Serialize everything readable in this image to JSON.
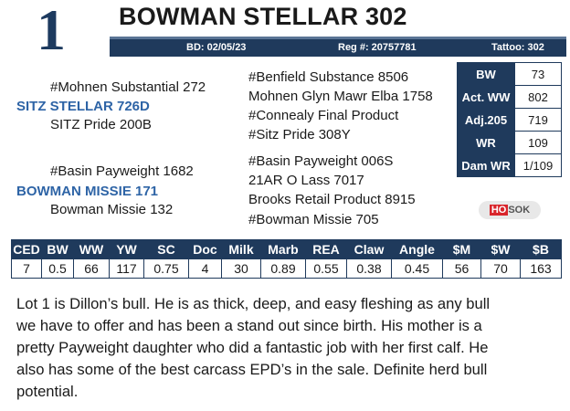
{
  "lot": {
    "number": "1",
    "name": "BOWMAN STELLAR 302",
    "bd": "BD: 02/05/23",
    "reg": "Reg #: 20757781",
    "tattoo": "Tattoo: 302"
  },
  "pedigree": {
    "sire_sire": "#Mohnen Substantial 272",
    "sire": "SITZ STELLAR 726D",
    "sire_dam": "SITZ Pride 200B",
    "dam_sire": "#Basin Payweight 1682",
    "dam": "BOWMAN MISSIE 171",
    "dam_dam": "Bowman Missie 132",
    "third": [
      "#Benfield Substance 8506",
      "Mohnen Glyn Mawr Elba 1758",
      "#Connealy Final Product",
      "#Sitz Pride 308Y",
      "#Basin Payweight 006S",
      "21AR O Lass 7017",
      "Brooks Retail Product 8915",
      "#Bowman Missie 705"
    ]
  },
  "stats": {
    "rows": [
      [
        "BW",
        "73"
      ],
      [
        "Act. WW",
        "802"
      ],
      [
        "Adj.205",
        "719"
      ],
      [
        "WR",
        "109"
      ],
      [
        "Dam WR",
        "1/109"
      ]
    ]
  },
  "logo": {
    "left": "HO",
    "right": "SOK"
  },
  "epd": {
    "headers": [
      "CED",
      "BW",
      "WW",
      "YW",
      "SC",
      "Doc",
      "Milk",
      "Marb",
      "REA",
      "Claw",
      "Angle",
      "$M",
      "$W",
      "$B"
    ],
    "values": [
      "7",
      "0.5",
      "66",
      "117",
      "0.75",
      "4",
      "30",
      "0.89",
      "0.55",
      "0.38",
      "0.45",
      "56",
      "70",
      "163"
    ]
  },
  "description": {
    "lines": [
      "Lot 1 is Dillon’s bull. He is as thick, deep, and easy fleshing as any bull",
      "we have to offer and has been a stand out since birth. His mother is a",
      "pretty Payweight daughter who did a fantastic job with her first calf. He",
      "also has some of the best carcass EPD’s in the sale. Definite herd bull",
      "potential."
    ]
  }
}
